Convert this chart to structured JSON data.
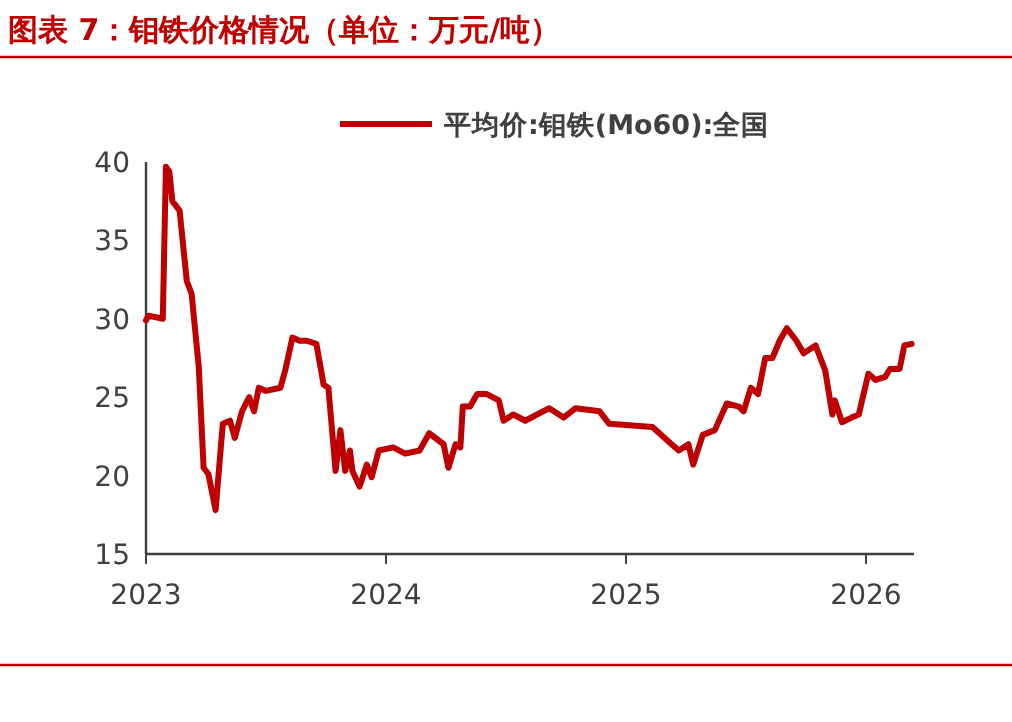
{
  "chart_data": {
    "type": "line",
    "title": "图表 7：钼铁价格情况（单位：万元/吨）",
    "x": [
      2023.0,
      2023.01,
      2023.07,
      2023.083,
      2023.097,
      2023.11,
      2023.14,
      2023.17,
      2023.19,
      2023.22,
      2023.24,
      2023.26,
      2023.29,
      2023.32,
      2023.35,
      2023.37,
      2023.4,
      2023.43,
      2023.45,
      2023.47,
      2023.5,
      2023.56,
      2023.58,
      2023.61,
      2023.64,
      2023.67,
      2023.71,
      2023.74,
      2023.76,
      2023.79,
      2023.81,
      2023.83,
      2023.85,
      2023.86,
      2023.89,
      2023.92,
      2023.94,
      2023.97,
      2024.03,
      2024.08,
      2024.14,
      2024.18,
      2024.24,
      2024.26,
      2024.29,
      2024.31,
      2024.32,
      2024.35,
      2024.38,
      2024.42,
      2024.47,
      2024.49,
      2024.53,
      2024.58,
      2024.68,
      2024.74,
      2024.79,
      2024.89,
      2024.93,
      2025.11,
      2025.19,
      2025.22,
      2025.26,
      2025.28,
      2025.32,
      2025.37,
      2025.42,
      2025.47,
      2025.49,
      2025.52,
      2025.55,
      2025.58,
      2025.61,
      2025.64,
      2025.67,
      2025.71,
      2025.74,
      2025.79,
      2025.83,
      2025.86,
      2025.87,
      2025.9,
      2025.94,
      2025.97,
      2026.01,
      2026.04,
      2026.08,
      2026.1,
      2026.14,
      2026.16,
      2026.19
    ],
    "series": [
      {
        "name": "平均价:钼铁(Mo60):全国",
        "color": "#c00000",
        "values": [
          29.9,
          30.2,
          30.0,
          39.7,
          39.4,
          37.5,
          36.9,
          32.4,
          31.6,
          26.9,
          20.5,
          20.1,
          17.8,
          23.3,
          23.5,
          22.4,
          24.1,
          25.0,
          24.1,
          25.6,
          25.4,
          25.6,
          26.7,
          28.8,
          28.6,
          28.6,
          28.4,
          25.8,
          25.6,
          20.3,
          22.9,
          20.3,
          21.6,
          20.3,
          19.3,
          20.7,
          19.9,
          21.6,
          21.8,
          21.4,
          21.6,
          22.7,
          22.0,
          20.5,
          22.0,
          21.8,
          24.4,
          24.4,
          25.2,
          25.2,
          24.8,
          23.5,
          23.9,
          23.5,
          24.3,
          23.7,
          24.3,
          24.1,
          23.3,
          23.1,
          22.0,
          21.6,
          22.0,
          20.7,
          22.6,
          22.9,
          24.6,
          24.4,
          24.1,
          25.6,
          25.2,
          27.5,
          27.5,
          28.6,
          29.4,
          28.6,
          27.8,
          28.3,
          26.7,
          23.9,
          24.8,
          23.4,
          23.7,
          23.9,
          26.5,
          26.1,
          26.3,
          26.8,
          26.8,
          28.3,
          28.4
        ]
      }
    ],
    "xlim": [
      2023,
      2026.2
    ],
    "ylim": [
      15,
      40
    ],
    "xticks": [
      2023,
      2024,
      2025,
      2026
    ],
    "yticks": [
      15,
      20,
      25,
      30,
      35,
      40
    ],
    "legend": "top"
  }
}
